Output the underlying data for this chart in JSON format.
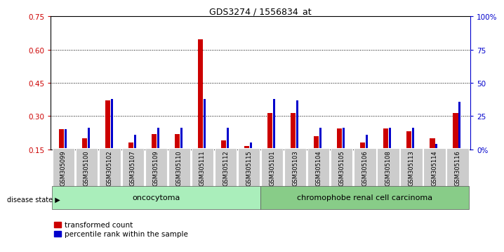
{
  "title": "GDS3274 / 1556834_at",
  "samples": [
    "GSM305099",
    "GSM305100",
    "GSM305102",
    "GSM305107",
    "GSM305109",
    "GSM305110",
    "GSM305111",
    "GSM305112",
    "GSM305115",
    "GSM305101",
    "GSM305103",
    "GSM305104",
    "GSM305105",
    "GSM305106",
    "GSM305108",
    "GSM305113",
    "GSM305114",
    "GSM305116"
  ],
  "red_values": [
    0.24,
    0.2,
    0.37,
    0.18,
    0.22,
    0.22,
    0.645,
    0.19,
    0.165,
    0.315,
    0.315,
    0.21,
    0.245,
    0.18,
    0.245,
    0.23,
    0.2,
    0.315
  ],
  "blue_pct": [
    15,
    16,
    38,
    11,
    16,
    16,
    38,
    16,
    5,
    38,
    37,
    16,
    16,
    11,
    16,
    16,
    4,
    36
  ],
  "ylim_left": [
    0.15,
    0.75
  ],
  "ylim_right": [
    0,
    100
  ],
  "yticks_left": [
    0.15,
    0.3,
    0.45,
    0.6,
    0.75
  ],
  "yticks_right": [
    0,
    25,
    50,
    75,
    100
  ],
  "ytick_labels_left": [
    "0.15",
    "0.30",
    "0.45",
    "0.60",
    "0.75"
  ],
  "ytick_labels_right": [
    "0%",
    "25",
    "50",
    "75",
    "100%"
  ],
  "group1_label": "oncocytoma",
  "group2_label": "chromophobe renal cell carcinoma",
  "group1_count": 9,
  "group2_count": 9,
  "legend1": "transformed count",
  "legend2": "percentile rank within the sample",
  "disease_state_label": "disease state",
  "bar_color_red": "#CC0000",
  "bar_color_blue": "#0000CC",
  "group1_bg": "#AAEEBB",
  "group2_bg": "#88CC88",
  "tick_label_bg": "#CCCCCC",
  "baseline": 0.15
}
